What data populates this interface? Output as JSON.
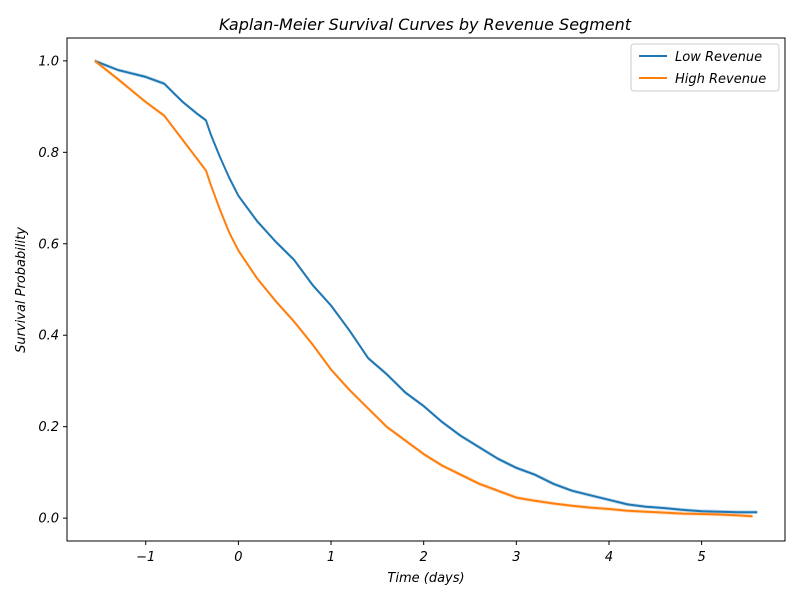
{
  "chart_data": {
    "type": "line",
    "title": "Kaplan-Meier Survival Curves by Revenue Segment",
    "xlabel": "Time (days)",
    "ylabel": "Survival Probability",
    "xlim": [
      -1.85,
      5.9
    ],
    "ylim": [
      -0.05,
      1.05
    ],
    "xticks": [
      -1,
      0,
      1,
      2,
      3,
      4,
      5
    ],
    "xtick_labels": [
      "−1",
      "0",
      "1",
      "2",
      "3",
      "4",
      "5"
    ],
    "yticks": [
      0.0,
      0.2,
      0.4,
      0.6,
      0.8,
      1.0
    ],
    "ytick_labels": [
      "0.0",
      "0.2",
      "0.4",
      "0.6",
      "0.8",
      "1.0"
    ],
    "grid": false,
    "legend_position": "top-right",
    "series": [
      {
        "name": "Low Revenue",
        "color": "#1f77b4",
        "x": [
          -1.55,
          -1.3,
          -1.0,
          -0.8,
          -0.7,
          -0.6,
          -0.45,
          -0.35,
          -0.3,
          -0.2,
          -0.1,
          0.0,
          0.2,
          0.4,
          0.6,
          0.8,
          1.0,
          1.2,
          1.4,
          1.6,
          1.8,
          2.0,
          2.2,
          2.4,
          2.6,
          2.8,
          3.0,
          3.2,
          3.4,
          3.6,
          3.8,
          4.0,
          4.2,
          4.4,
          4.6,
          4.8,
          5.0,
          5.2,
          5.4,
          5.6
        ],
        "y": [
          1.0,
          0.98,
          0.965,
          0.95,
          0.93,
          0.91,
          0.885,
          0.87,
          0.84,
          0.79,
          0.745,
          0.705,
          0.65,
          0.605,
          0.565,
          0.51,
          0.465,
          0.41,
          0.35,
          0.315,
          0.275,
          0.245,
          0.21,
          0.18,
          0.155,
          0.13,
          0.11,
          0.095,
          0.075,
          0.06,
          0.05,
          0.04,
          0.03,
          0.025,
          0.022,
          0.018,
          0.015,
          0.014,
          0.013,
          0.013
        ]
      },
      {
        "name": "High Revenue",
        "color": "#ff7f0e",
        "x": [
          -1.55,
          -1.3,
          -1.0,
          -0.8,
          -0.65,
          -0.5,
          -0.35,
          -0.3,
          -0.2,
          -0.1,
          0.0,
          0.2,
          0.4,
          0.6,
          0.8,
          1.0,
          1.2,
          1.4,
          1.6,
          1.8,
          2.0,
          2.2,
          2.4,
          2.6,
          2.8,
          3.0,
          3.2,
          3.4,
          3.6,
          3.8,
          4.0,
          4.2,
          4.4,
          4.6,
          4.8,
          5.0,
          5.2,
          5.4,
          5.55
        ],
        "y": [
          1.0,
          0.96,
          0.91,
          0.88,
          0.84,
          0.8,
          0.76,
          0.73,
          0.675,
          0.625,
          0.585,
          0.525,
          0.475,
          0.43,
          0.38,
          0.325,
          0.28,
          0.24,
          0.2,
          0.17,
          0.14,
          0.115,
          0.095,
          0.075,
          0.06,
          0.045,
          0.038,
          0.032,
          0.027,
          0.023,
          0.02,
          0.016,
          0.014,
          0.012,
          0.01,
          0.009,
          0.008,
          0.006,
          0.004
        ]
      }
    ]
  }
}
